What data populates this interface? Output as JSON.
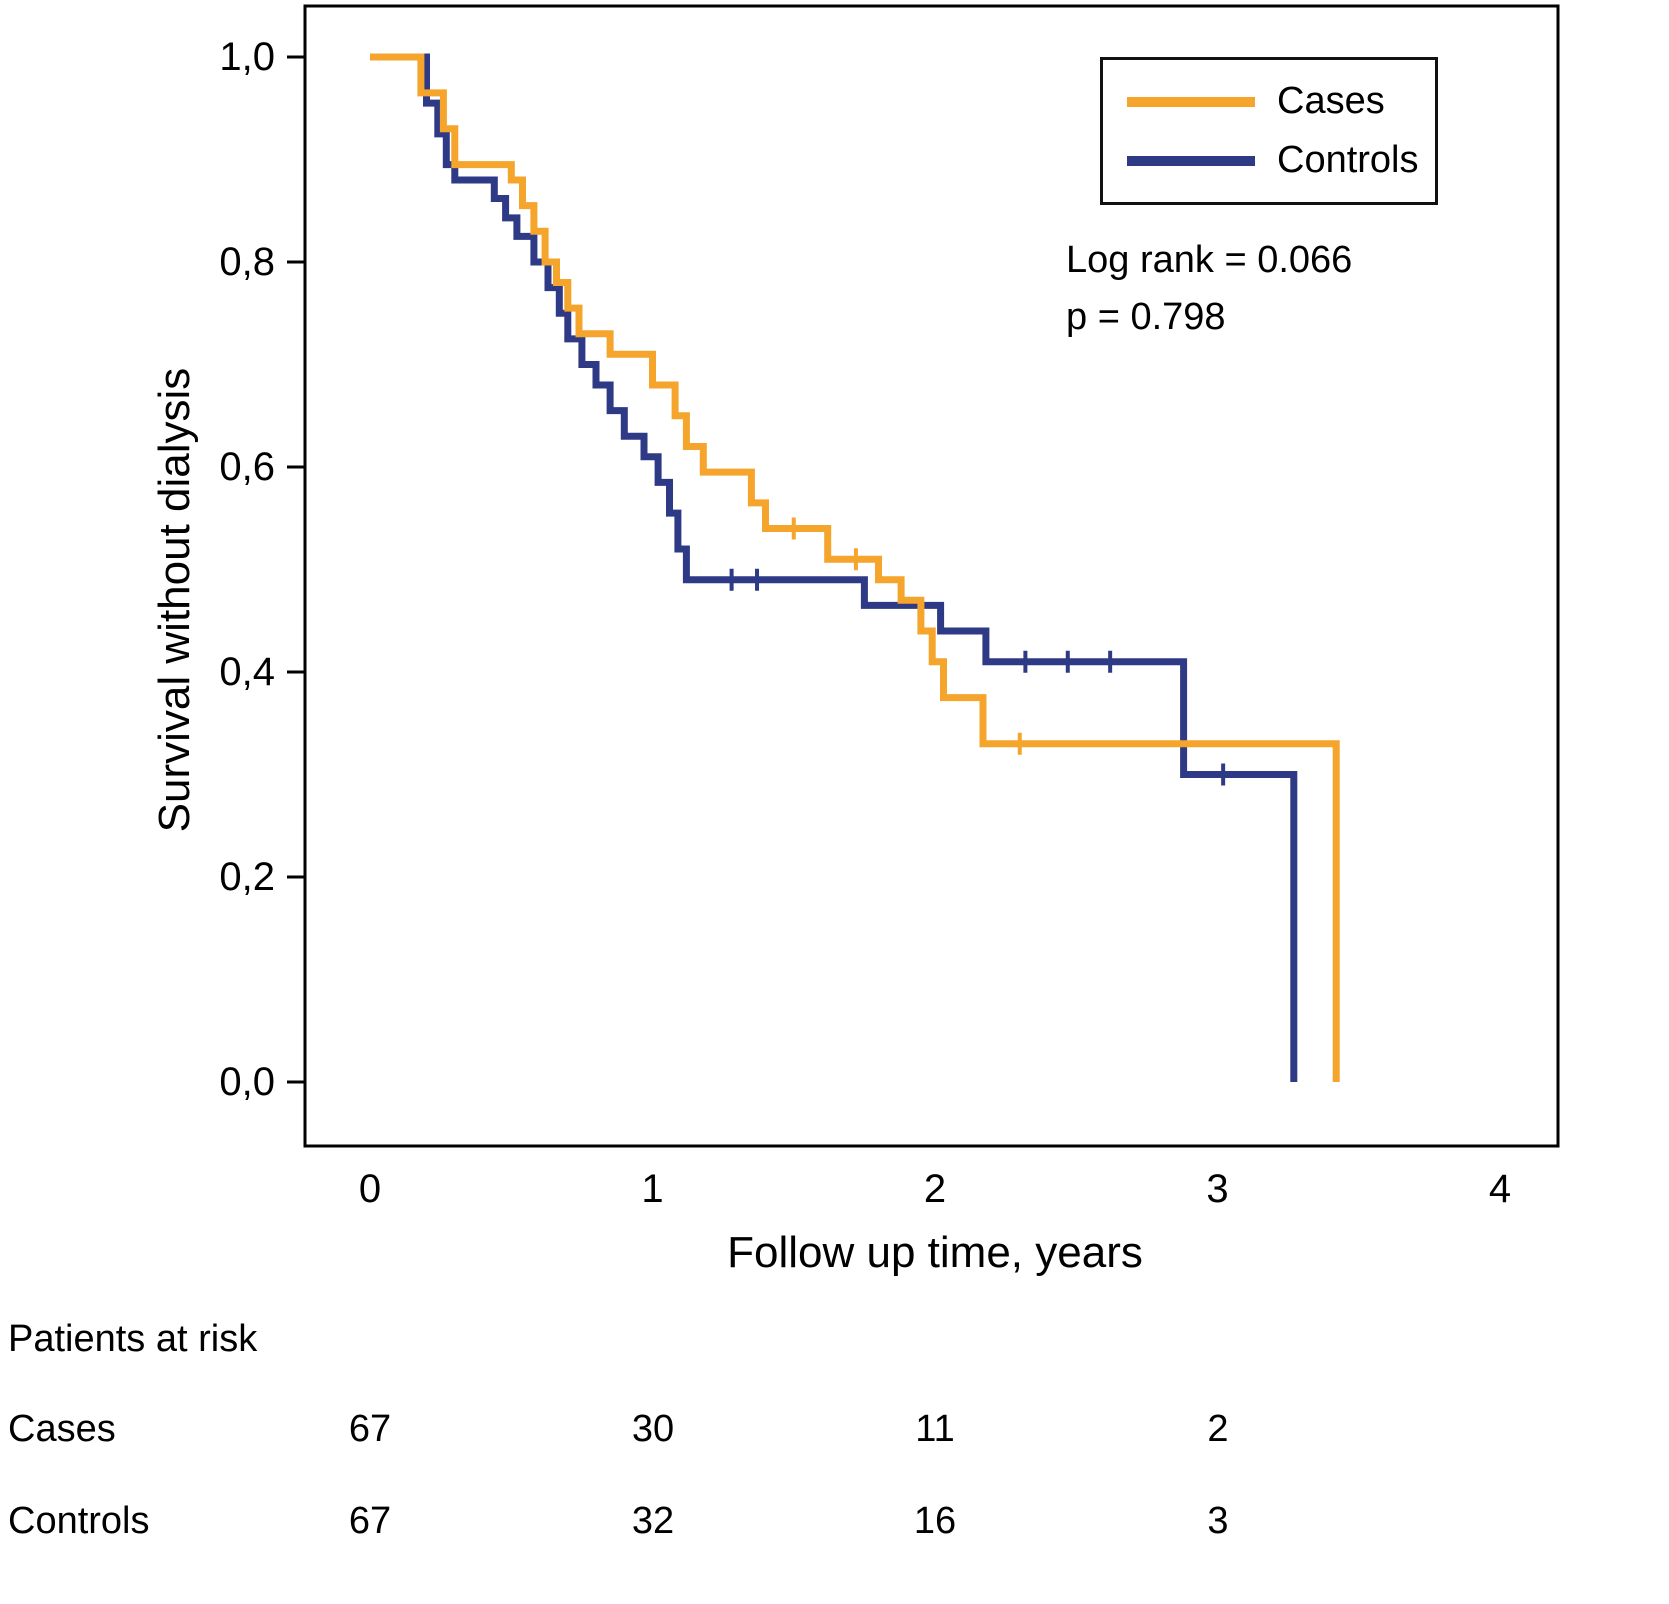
{
  "figure": {
    "stats_line1": "Log rank = 0.066",
    "stats_line2": "p = 0.798",
    "legend": [
      {
        "label": "Cases",
        "color": "#F5A42C"
      },
      {
        "label": "Controls",
        "color": "#2E3A85"
      }
    ]
  },
  "risk_table": {
    "title": "Patients at risk",
    "rows": [
      {
        "label": "Cases",
        "counts": [
          "67",
          "30",
          "11",
          "2"
        ]
      },
      {
        "label": "Controls",
        "counts": [
          "67",
          "32",
          "16",
          "3"
        ]
      }
    ]
  },
  "chart_data": {
    "type": "line",
    "subtype": "kaplan-meier-step",
    "title": "",
    "xlabel": "Follow up time, years",
    "ylabel": "Survival without dialysis",
    "xlim": [
      0,
      4
    ],
    "ylim": [
      0,
      1
    ],
    "grid": false,
    "legend_position": "top-right",
    "annotations": [
      "Log rank = 0.066",
      "p = 0.798"
    ],
    "x_ticks": {
      "values": [
        0,
        1,
        2,
        3,
        4
      ],
      "labels": [
        "0",
        "1",
        "2",
        "3",
        "4"
      ]
    },
    "y_ticks": {
      "values": [
        0.0,
        0.2,
        0.4,
        0.6,
        0.8,
        1.0
      ],
      "labels": [
        "0,0",
        "0,2",
        "0,4",
        "0,6",
        "0,8",
        "1,0"
      ]
    },
    "series": [
      {
        "name": "Cases",
        "color": "#F5A42C",
        "step_points": [
          [
            0,
            1.0
          ],
          [
            0.18,
            0.965
          ],
          [
            0.26,
            0.93
          ],
          [
            0.3,
            0.895
          ],
          [
            0.5,
            0.88
          ],
          [
            0.54,
            0.855
          ],
          [
            0.58,
            0.83
          ],
          [
            0.62,
            0.8
          ],
          [
            0.66,
            0.78
          ],
          [
            0.7,
            0.755
          ],
          [
            0.74,
            0.73
          ],
          [
            0.85,
            0.71
          ],
          [
            1.0,
            0.68
          ],
          [
            1.08,
            0.65
          ],
          [
            1.12,
            0.62
          ],
          [
            1.18,
            0.595
          ],
          [
            1.35,
            0.565
          ],
          [
            1.4,
            0.54
          ],
          [
            1.62,
            0.51
          ],
          [
            1.8,
            0.49
          ],
          [
            1.88,
            0.47
          ],
          [
            1.95,
            0.44
          ],
          [
            1.99,
            0.41
          ],
          [
            2.03,
            0.375
          ],
          [
            2.17,
            0.33
          ],
          [
            3.42,
            0.0
          ]
        ],
        "censor_marks": [
          [
            1.5,
            0.54
          ],
          [
            1.72,
            0.51
          ],
          [
            2.3,
            0.33
          ]
        ]
      },
      {
        "name": "Controls",
        "color": "#2E3A85",
        "step_points": [
          [
            0,
            1.0
          ],
          [
            0.2,
            0.955
          ],
          [
            0.24,
            0.925
          ],
          [
            0.27,
            0.895
          ],
          [
            0.3,
            0.88
          ],
          [
            0.44,
            0.862
          ],
          [
            0.48,
            0.843
          ],
          [
            0.52,
            0.825
          ],
          [
            0.58,
            0.8
          ],
          [
            0.63,
            0.775
          ],
          [
            0.67,
            0.75
          ],
          [
            0.7,
            0.725
          ],
          [
            0.75,
            0.7
          ],
          [
            0.8,
            0.68
          ],
          [
            0.85,
            0.655
          ],
          [
            0.9,
            0.63
          ],
          [
            0.97,
            0.61
          ],
          [
            1.02,
            0.585
          ],
          [
            1.06,
            0.555
          ],
          [
            1.09,
            0.52
          ],
          [
            1.12,
            0.49
          ],
          [
            1.75,
            0.465
          ],
          [
            2.02,
            0.44
          ],
          [
            2.18,
            0.41
          ],
          [
            2.88,
            0.3
          ],
          [
            3.27,
            0.0
          ]
        ],
        "censor_marks": [
          [
            1.28,
            0.49
          ],
          [
            1.37,
            0.49
          ],
          [
            2.32,
            0.41
          ],
          [
            2.47,
            0.41
          ],
          [
            2.62,
            0.41
          ],
          [
            3.02,
            0.3
          ]
        ]
      }
    ],
    "risk_table": {
      "title": "Patients at risk",
      "times": [
        0,
        1,
        2,
        3
      ],
      "rows": [
        {
          "label": "Cases",
          "counts": [
            67,
            30,
            11,
            2
          ]
        },
        {
          "label": "Controls",
          "counts": [
            67,
            32,
            16,
            3
          ]
        }
      ]
    }
  }
}
